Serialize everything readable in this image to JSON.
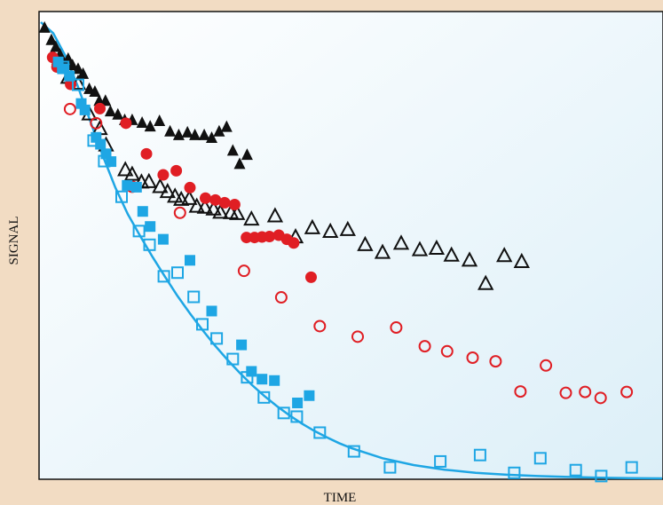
{
  "chart_data": {
    "type": "scatter",
    "title": "",
    "xlabel": "TIME",
    "ylabel": "SIGNAL",
    "xlim": [
      0,
      100
    ],
    "ylim": [
      0,
      100
    ],
    "grid": false,
    "legend": "none",
    "x_ticks": false,
    "y_ticks": false,
    "background": [
      "#ffffff",
      "#dceff8"
    ],
    "series": [
      {
        "marker": "filled-triangle",
        "color": "#111111",
        "points": [
          [
            0.6,
            98.7
          ],
          [
            1.7,
            96.0
          ],
          [
            2.4,
            94.5
          ],
          [
            3.1,
            92.8
          ],
          [
            4.4,
            91.9
          ],
          [
            5.1,
            90.5
          ],
          [
            6.0,
            89.7
          ],
          [
            6.8,
            88.6
          ],
          [
            7.8,
            85.3
          ],
          [
            8.7,
            84.7
          ],
          [
            9.4,
            82.7
          ],
          [
            10.4,
            82.7
          ],
          [
            11.2,
            80.4
          ],
          [
            12.4,
            79.7
          ],
          [
            13.5,
            78.5
          ],
          [
            14.7,
            78.5
          ],
          [
            16.3,
            77.9
          ],
          [
            17.6,
            77.1
          ],
          [
            19.1,
            78.3
          ],
          [
            20.8,
            76.0
          ],
          [
            22.2,
            75.2
          ],
          [
            23.6,
            75.8
          ],
          [
            24.8,
            75.2
          ],
          [
            26.3,
            75.2
          ],
          [
            27.5,
            74.6
          ],
          [
            28.7,
            76.0
          ],
          [
            29.9,
            77.0
          ],
          [
            30.9,
            71.8
          ],
          [
            32.0,
            68.9
          ],
          [
            33.2,
            70.9
          ]
        ]
      },
      {
        "marker": "open-triangle",
        "color": "#111111",
        "points": [
          [
            3.0,
            92.0
          ],
          [
            4.4,
            87.8
          ],
          [
            6.0,
            86.5
          ],
          [
            7.8,
            79.8
          ],
          [
            9.5,
            76.6
          ],
          [
            10.5,
            73.0
          ],
          [
            13.6,
            67.6
          ],
          [
            14.7,
            66.6
          ],
          [
            16.2,
            64.9
          ],
          [
            17.4,
            65.0
          ],
          [
            19.2,
            63.9
          ],
          [
            20.4,
            62.8
          ],
          [
            21.6,
            61.8
          ],
          [
            22.6,
            61.1
          ],
          [
            23.9,
            61.3
          ],
          [
            25.1,
            59.6
          ],
          [
            26.4,
            59.4
          ],
          [
            27.8,
            59.0
          ],
          [
            28.9,
            58.3
          ],
          [
            30.6,
            58.2
          ],
          [
            31.6,
            58.0
          ],
          [
            33.9,
            56.8
          ],
          [
            37.7,
            57.5
          ],
          [
            41.0,
            52.9
          ],
          [
            43.7,
            54.9
          ],
          [
            46.6,
            54.1
          ],
          [
            49.4,
            54.5
          ],
          [
            52.2,
            51.2
          ],
          [
            55.0,
            49.5
          ],
          [
            58.0,
            51.5
          ],
          [
            61.0,
            50.1
          ],
          [
            63.7,
            50.4
          ],
          [
            66.1,
            48.9
          ],
          [
            69.0,
            47.8
          ],
          [
            71.6,
            42.7
          ],
          [
            74.6,
            48.8
          ],
          [
            77.4,
            47.5
          ]
        ]
      },
      {
        "marker": "filled-circle",
        "color": "#e01e24",
        "points": [
          [
            1.9,
            92.3
          ],
          [
            2.6,
            90.2
          ],
          [
            4.8,
            86.4
          ],
          [
            9.5,
            81.1
          ],
          [
            13.7,
            77.9
          ],
          [
            17.0,
            71.2
          ],
          [
            19.7,
            66.6
          ],
          [
            21.8,
            67.5
          ],
          [
            24.0,
            63.8
          ],
          [
            26.5,
            61.5
          ],
          [
            28.1,
            61.1
          ],
          [
            29.6,
            60.5
          ],
          [
            31.2,
            60.1
          ],
          [
            33.1,
            52.9
          ],
          [
            34.4,
            52.9
          ],
          [
            35.6,
            53.0
          ],
          [
            36.8,
            53.1
          ],
          [
            38.3,
            53.4
          ],
          [
            39.6,
            52.5
          ],
          [
            40.7,
            51.7
          ],
          [
            43.5,
            44.2
          ]
        ]
      },
      {
        "marker": "open-circle",
        "color": "#e01e24",
        "points": [
          [
            4.7,
            81.0
          ],
          [
            8.9,
            77.9
          ],
          [
            14.7,
            64.0
          ],
          [
            22.4,
            58.3
          ],
          [
            32.7,
            45.6
          ],
          [
            38.7,
            39.8
          ],
          [
            44.9,
            33.5
          ],
          [
            51.0,
            31.2
          ],
          [
            57.2,
            33.2
          ],
          [
            61.8,
            29.1
          ],
          [
            65.4,
            28.0
          ],
          [
            69.5,
            26.6
          ],
          [
            73.2,
            25.8
          ],
          [
            77.2,
            19.2
          ],
          [
            81.3,
            24.9
          ],
          [
            84.5,
            18.9
          ],
          [
            87.6,
            19.1
          ],
          [
            90.1,
            17.8
          ],
          [
            94.3,
            19.1
          ]
        ]
      },
      {
        "marker": "filled-square",
        "color": "#1ea6e4",
        "points": [
          [
            2.8,
            91.3
          ],
          [
            3.5,
            89.8
          ],
          [
            4.6,
            88.2
          ],
          [
            6.5,
            82.2
          ],
          [
            7.1,
            80.8
          ],
          [
            8.9,
            74.8
          ],
          [
            9.6,
            73.3
          ],
          [
            10.5,
            71.2
          ],
          [
            11.3,
            69.5
          ],
          [
            13.9,
            64.3
          ],
          [
            15.4,
            63.9
          ],
          [
            16.4,
            58.6
          ],
          [
            17.6,
            55.3
          ],
          [
            19.7,
            52.5
          ],
          [
            24.0,
            47.9
          ],
          [
            27.5,
            36.8
          ],
          [
            32.3,
            29.4
          ],
          [
            33.9,
            23.6
          ],
          [
            35.6,
            21.9
          ],
          [
            37.6,
            21.6
          ],
          [
            41.3,
            16.7
          ],
          [
            43.2,
            18.3
          ]
        ]
      },
      {
        "marker": "open-square",
        "color": "#1ea6e4",
        "points": [
          [
            3.6,
            90.2
          ],
          [
            6.0,
            86.3
          ],
          [
            8.5,
            74.1
          ],
          [
            10.2,
            69.6
          ],
          [
            13.0,
            61.8
          ],
          [
            15.8,
            54.3
          ],
          [
            17.5,
            51.3
          ],
          [
            19.8,
            44.4
          ],
          [
            22.0,
            45.2
          ],
          [
            24.6,
            39.9
          ],
          [
            26.0,
            33.9
          ],
          [
            28.3,
            30.8
          ],
          [
            30.9,
            26.3
          ],
          [
            33.2,
            22.3
          ],
          [
            35.9,
            17.9
          ],
          [
            39.1,
            14.5
          ],
          [
            41.2,
            13.7
          ],
          [
            44.9,
            10.2
          ],
          [
            50.4,
            6.1
          ],
          [
            56.2,
            2.6
          ],
          [
            64.3,
            3.9
          ],
          [
            70.7,
            5.3
          ],
          [
            76.2,
            1.4
          ],
          [
            80.4,
            4.6
          ],
          [
            86.1,
            2.0
          ],
          [
            90.2,
            0.7
          ],
          [
            95.1,
            2.6
          ]
        ]
      }
    ],
    "fit_curve": {
      "color": "#1ea6e4",
      "points": [
        [
          0,
          100
        ],
        [
          2,
          97.6
        ],
        [
          4,
          92.5
        ],
        [
          6,
          85.8
        ],
        [
          8,
          78.2
        ],
        [
          10,
          70.7
        ],
        [
          12,
          63.8
        ],
        [
          14,
          58.0
        ],
        [
          16,
          53.2
        ],
        [
          18,
          48.6
        ],
        [
          20,
          44.3
        ],
        [
          22,
          40.1
        ],
        [
          24,
          36.3
        ],
        [
          26,
          32.7
        ],
        [
          28,
          29.3
        ],
        [
          30,
          26.2
        ],
        [
          32,
          23.3
        ],
        [
          34,
          20.6
        ],
        [
          36,
          18.2
        ],
        [
          38,
          16.0
        ],
        [
          40,
          14.0
        ],
        [
          42,
          12.2
        ],
        [
          44,
          10.6
        ],
        [
          46,
          9.2
        ],
        [
          48,
          7.9
        ],
        [
          50,
          6.8
        ],
        [
          55,
          4.6
        ],
        [
          60,
          3.1
        ],
        [
          65,
          2.1
        ],
        [
          70,
          1.4
        ],
        [
          75,
          1.0
        ],
        [
          80,
          0.7
        ],
        [
          85,
          0.5
        ],
        [
          90,
          0.35
        ],
        [
          95,
          0.25
        ],
        [
          100,
          0.2
        ]
      ]
    }
  }
}
